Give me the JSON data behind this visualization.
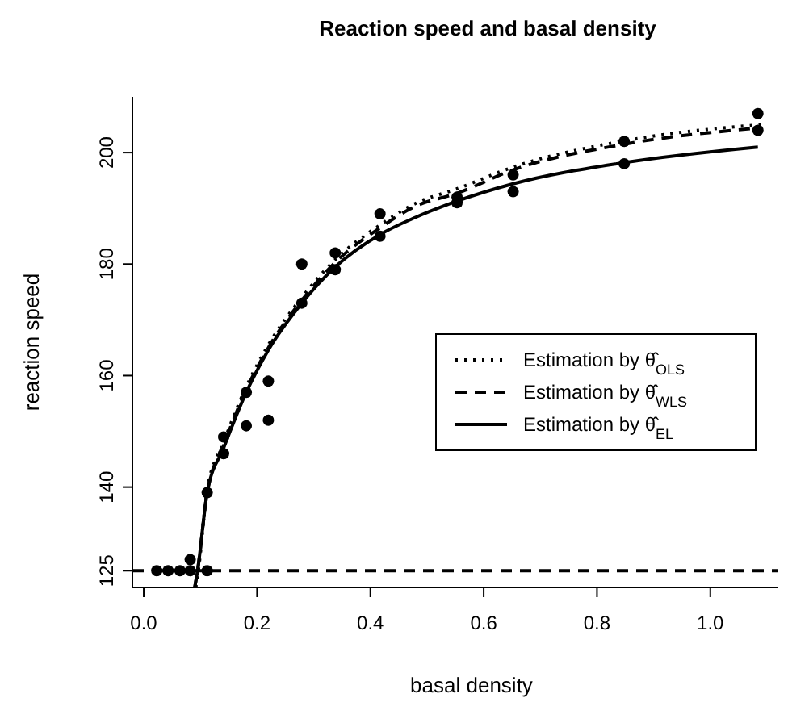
{
  "chart_data": {
    "type": "scatter",
    "title": "Reaction speed and basal density",
    "xlabel": "basal density",
    "ylabel": "reaction speed",
    "xlim": [
      -0.02,
      1.12
    ],
    "ylim": [
      122,
      210
    ],
    "xticks": [
      {
        "value": 0,
        "label": "0.0"
      },
      {
        "value": 0.2,
        "label": "0.2"
      },
      {
        "value": 0.4,
        "label": "0.4"
      },
      {
        "value": 0.6,
        "label": "0.6"
      },
      {
        "value": 0.8,
        "label": "0.8"
      },
      {
        "value": 1,
        "label": "1.0"
      }
    ],
    "yticks": [
      125,
      140,
      160,
      180,
      200
    ],
    "legend": "right",
    "marker": "circle",
    "ref_lines": [
      {
        "axis": "y",
        "value": 125,
        "line_style": "dashed",
        "color": "#000000"
      }
    ],
    "series": [
      {
        "color": "#000000",
        "x": [
          0.023,
          0.043,
          0.064,
          0.082,
          0.082,
          0.112,
          0.112,
          0.141,
          0.141,
          0.181,
          0.181,
          0.22,
          0.22,
          0.279,
          0.279,
          0.338,
          0.338,
          0.417,
          0.417,
          0.553,
          0.553,
          0.652,
          0.652,
          0.848,
          0.848,
          1.084,
          1.084
        ],
        "values": [
          125,
          125,
          125,
          125,
          127,
          125,
          139,
          146,
          149,
          157,
          151,
          159,
          152,
          180,
          173,
          182,
          179,
          189,
          185,
          191,
          192,
          196,
          193,
          202,
          198,
          207,
          204
        ]
      },
      {
        "type": "line",
        "name": "Estimation by θ̂$_{OLS}$",
        "color": "#000000",
        "line_style": "dotted",
        "marker": "none",
        "x": [
          0.092,
          0.097,
          0.112,
          0.141,
          0.181,
          0.22,
          0.279,
          0.338,
          0.417,
          0.48,
          0.553,
          0.652,
          0.848,
          1.1
        ],
        "values": [
          122,
          125.5,
          139.5,
          148,
          158,
          165.5,
          174,
          180.8,
          187,
          190.9,
          193.5,
          197.4,
          202.1,
          205.1
        ]
      },
      {
        "type": "line",
        "name": "Estimation by θ̂$_{WLS}$",
        "color": "#000000",
        "line_style": "dashed",
        "marker": "none",
        "x": [
          0.09,
          0.095,
          0.112,
          0.141,
          0.181,
          0.22,
          0.279,
          0.338,
          0.417,
          0.48,
          0.553,
          0.652,
          0.848,
          1.084
        ],
        "values": [
          122,
          125,
          139,
          147.5,
          157.5,
          165,
          173.5,
          180.3,
          186.5,
          190.4,
          192.7,
          196.9,
          201.5,
          204.4
        ]
      },
      {
        "type": "line",
        "name": "Estimation by θ̂$_{EL}$",
        "color": "#000000",
        "line_style": "solid",
        "marker": "none",
        "x": [
          0.09,
          0.095,
          0.112,
          0.141,
          0.181,
          0.22,
          0.279,
          0.338,
          0.417,
          0.48,
          0.553,
          0.652,
          0.848,
          1.084
        ],
        "values": [
          122,
          125,
          139,
          147,
          157,
          164.6,
          173,
          179.5,
          185.3,
          188.4,
          191.3,
          194.4,
          198.2,
          201
        ]
      }
    ]
  }
}
